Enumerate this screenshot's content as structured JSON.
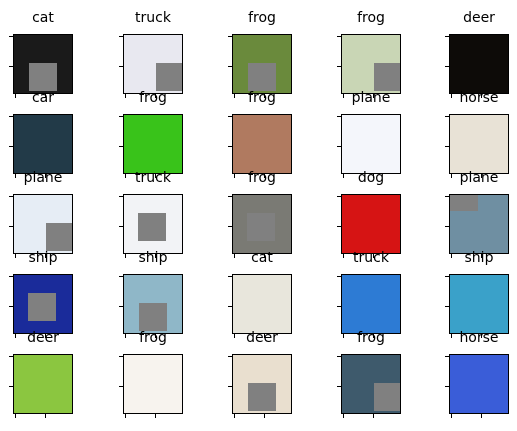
{
  "grid": {
    "rows": [
      [
        {
          "label": "cat",
          "mask": "bl",
          "img": "#1a1a1a"
        },
        {
          "label": "truck",
          "mask": "br",
          "img": "#e8e8f0"
        },
        {
          "label": "frog",
          "mask": "bl",
          "img": "#6a8a3c"
        },
        {
          "label": "frog",
          "mask": "br",
          "img": "#c9d6b5"
        },
        {
          "label": "deer",
          "mask": "none",
          "img": "#0d0b08"
        }
      ],
      [
        {
          "label": "car",
          "mask": "none",
          "img": "#223a48"
        },
        {
          "label": "frog",
          "mask": "none",
          "img": "#39c31a"
        },
        {
          "label": "frog",
          "mask": "none",
          "img": "#b07a60"
        },
        {
          "label": "plane",
          "mask": "none",
          "img": "#f4f6fb"
        },
        {
          "label": "horse",
          "mask": "none",
          "img": "#e8e2d6"
        }
      ],
      [
        {
          "label": "plane",
          "mask": "br",
          "img": "#e6edf5"
        },
        {
          "label": "truck",
          "mask": "mid",
          "img": "#f2f3f6"
        },
        {
          "label": "frog",
          "mask": "mid",
          "img": "#7a7a74"
        },
        {
          "label": "dog",
          "mask": "none",
          "img": "#d61414"
        },
        {
          "label": "plane",
          "mask": "tl",
          "img": "#6f8fa2"
        }
      ],
      [
        {
          "label": "ship",
          "mask": "mid",
          "img": "#1a2b9a"
        },
        {
          "label": "ship",
          "mask": "bl",
          "img": "#8fb7c8"
        },
        {
          "label": "cat",
          "mask": "none",
          "img": "#e8e6dc"
        },
        {
          "label": "truck",
          "mask": "none",
          "img": "#2d7bd4"
        },
        {
          "label": "ship",
          "mask": "none",
          "img": "#3aa1c9"
        }
      ],
      [
        {
          "label": "deer",
          "mask": "none",
          "img": "#8bc640"
        },
        {
          "label": "frog",
          "mask": "none",
          "img": "#f7f3ee"
        },
        {
          "label": "deer",
          "mask": "bl",
          "img": "#e9dfcf"
        },
        {
          "label": "frog",
          "mask": "br",
          "img": "#3e5a6c"
        },
        {
          "label": "horse",
          "mask": "none",
          "img": "#3a5dd8"
        }
      ]
    ]
  },
  "colors": {
    "mask": "#808080",
    "frame": "#000000"
  }
}
